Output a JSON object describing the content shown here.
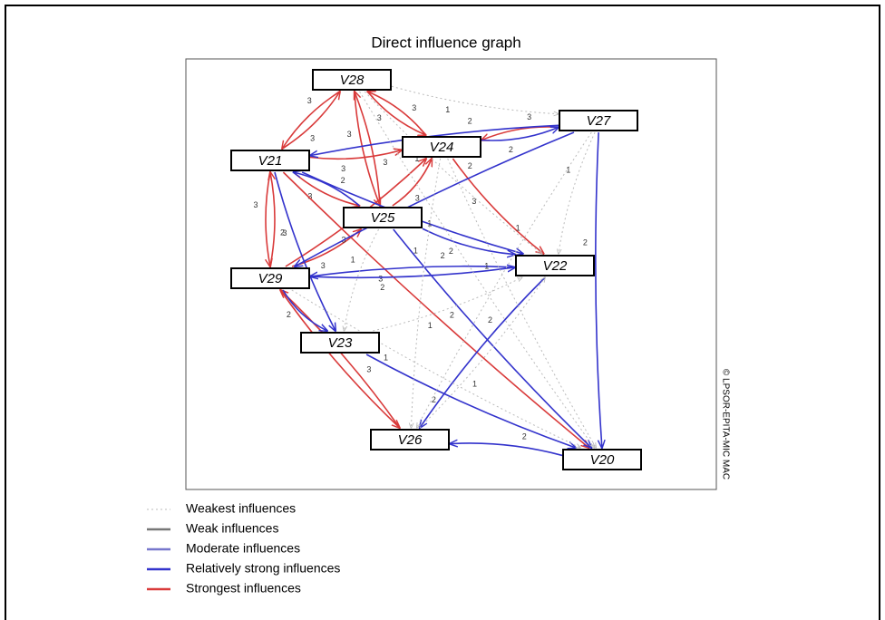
{
  "title": "Direct influence graph",
  "copyright": "© LPSOR-EPITA-MIC MAC",
  "nodes": [
    {
      "id": "V28",
      "label": "V28"
    },
    {
      "id": "V27",
      "label": "V27"
    },
    {
      "id": "V24",
      "label": "V24"
    },
    {
      "id": "V21",
      "label": "V21"
    },
    {
      "id": "V25",
      "label": "V25"
    },
    {
      "id": "V22",
      "label": "V22"
    },
    {
      "id": "V29",
      "label": "V29"
    },
    {
      "id": "V23",
      "label": "V23"
    },
    {
      "id": "V26",
      "label": "V26"
    },
    {
      "id": "V20",
      "label": "V20"
    }
  ],
  "edges": [
    {
      "from": "V21",
      "to": "V28",
      "weight": 3
    },
    {
      "from": "V28",
      "to": "V21",
      "weight": 3
    },
    {
      "from": "V21",
      "to": "V24",
      "weight": 3
    },
    {
      "from": "V24",
      "to": "V28",
      "weight": 3
    },
    {
      "from": "V28",
      "to": "V24",
      "weight": 3
    },
    {
      "from": "V28",
      "to": "V25",
      "weight": 3
    },
    {
      "from": "V25",
      "to": "V28",
      "weight": 3
    },
    {
      "from": "V27",
      "to": "V24",
      "weight": 3
    },
    {
      "from": "V24",
      "to": "V27",
      "weight": 2
    },
    {
      "from": "V21",
      "to": "V25",
      "weight": 3
    },
    {
      "from": "V25",
      "to": "V21",
      "weight": 2
    },
    {
      "from": "V21",
      "to": "V29",
      "weight": 3
    },
    {
      "from": "V29",
      "to": "V21",
      "weight": 3
    },
    {
      "from": "V29",
      "to": "V25",
      "weight": 3
    },
    {
      "from": "V25",
      "to": "V24",
      "weight": 3
    },
    {
      "from": "V29",
      "to": "V24",
      "weight": 3
    },
    {
      "from": "V24",
      "to": "V22",
      "weight": 3
    },
    {
      "from": "V21",
      "to": "V20",
      "weight": 3
    },
    {
      "from": "V29",
      "to": "V26",
      "weight": 3
    },
    {
      "from": "V26",
      "to": "V29",
      "weight": 3
    },
    {
      "from": "V21",
      "to": "V22",
      "weight": 2
    },
    {
      "from": "V29",
      "to": "V22",
      "weight": 2
    },
    {
      "from": "V22",
      "to": "V29",
      "weight": 2
    },
    {
      "from": "V25",
      "to": "V22",
      "weight": 2
    },
    {
      "from": "V27",
      "to": "V21",
      "weight": 2
    },
    {
      "from": "V27",
      "to": "V29",
      "weight": 2
    },
    {
      "from": "V27",
      "to": "V20",
      "weight": 2
    },
    {
      "from": "V22",
      "to": "V26",
      "weight": 2
    },
    {
      "from": "V20",
      "to": "V26",
      "weight": 2
    },
    {
      "from": "V23",
      "to": "V20",
      "weight": 2
    },
    {
      "from": "V25",
      "to": "V20",
      "weight": 2
    },
    {
      "from": "V29",
      "to": "V23",
      "weight": 2
    },
    {
      "from": "V21",
      "to": "V23",
      "weight": 2
    },
    {
      "from": "V28",
      "to": "V27",
      "weight": 1
    },
    {
      "from": "V28",
      "to": "V22",
      "weight": 1
    },
    {
      "from": "V23",
      "to": "V22",
      "weight": 1
    },
    {
      "from": "V28",
      "to": "V20",
      "weight": 1
    },
    {
      "from": "V24",
      "to": "V20",
      "weight": 1
    },
    {
      "from": "V25",
      "to": "V23",
      "weight": 1
    },
    {
      "from": "V26",
      "to": "V22",
      "weight": 1
    },
    {
      "from": "V24",
      "to": "V26",
      "weight": 1
    },
    {
      "from": "V27",
      "to": "V26",
      "weight": 1
    },
    {
      "from": "V27",
      "to": "V22",
      "weight": 1
    },
    {
      "from": "V29",
      "to": "V20",
      "weight": 1
    }
  ],
  "legend": [
    {
      "label": "Weakest influences",
      "color": "#bbbbbb",
      "dash": true
    },
    {
      "label": "Weak influences",
      "color": "#777777",
      "dash": false
    },
    {
      "label": "Moderate influences",
      "color": "#7777cc",
      "dash": false
    },
    {
      "label": "Relatively strong influences",
      "color": "#3333cc",
      "dash": false
    },
    {
      "label": "Strongest influences",
      "color": "#d93a3a",
      "dash": false
    }
  ]
}
